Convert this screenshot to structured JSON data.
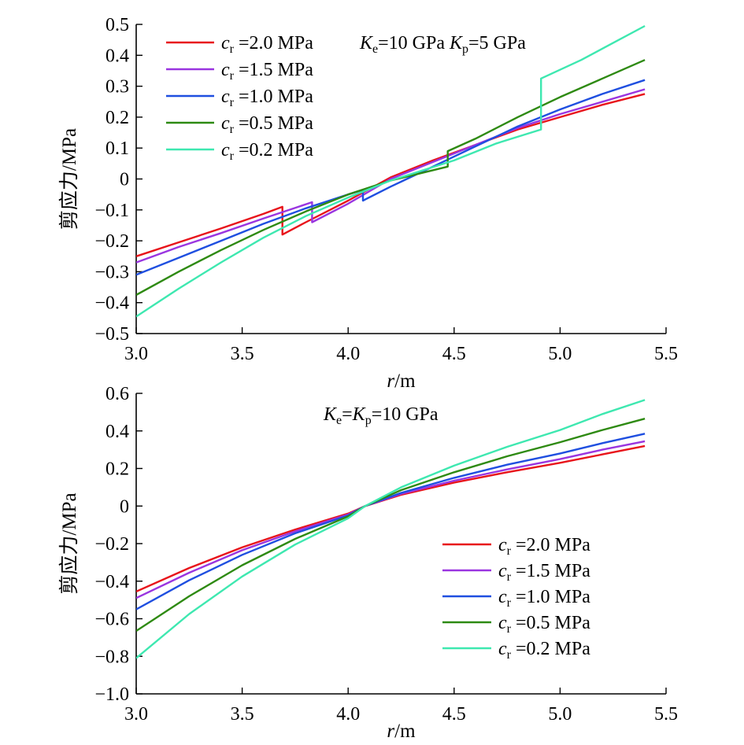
{
  "colors": {
    "c20": "#e8141b",
    "c15": "#9a35e0",
    "c10": "#1f4fe0",
    "c05": "#2e8a12",
    "c02": "#3ee8b0"
  },
  "chart_data": [
    {
      "type": "line",
      "ylabel": "剪应力/MPa",
      "xlabel_var": "r",
      "xlabel_unit": "/m",
      "xlim": [
        3.0,
        5.5
      ],
      "ylim": [
        -0.5,
        0.5
      ],
      "xticks": [
        "3.0",
        "3.5",
        "4.0",
        "4.5",
        "5.0",
        "5.5"
      ],
      "yticks": [
        "0.5",
        "0.4",
        "0.3",
        "0.2",
        "0.1",
        "0",
        "−0.1",
        "−0.2",
        "−0.3",
        "−0.4",
        "−0.5"
      ],
      "annotation": {
        "k1": "K",
        "k1_sub": "e",
        "k1_val": "=10 GPa ",
        "k2": "K",
        "k2_sub": "p",
        "k2_val": "=5 GPa"
      },
      "legend_position": "top-left",
      "series": [
        {
          "name_var": "c",
          "name_sub": "r",
          "name_val": " =2.0 MPa",
          "color_key": "c20",
          "points": [
            [
              3.0,
              -0.25
            ],
            [
              3.2,
              -0.205
            ],
            [
              3.4,
              -0.16
            ],
            [
              3.6,
              -0.113
            ],
            [
              3.69,
              -0.09
            ],
            [
              3.69,
              -0.18
            ],
            [
              3.8,
              -0.14
            ],
            [
              4.0,
              -0.07
            ],
            [
              4.2,
              0.005
            ],
            [
              4.4,
              0.06
            ],
            [
              4.6,
              0.11
            ],
            [
              4.8,
              0.16
            ],
            [
              5.0,
              0.2
            ],
            [
              5.2,
              0.24
            ],
            [
              5.4,
              0.275
            ]
          ]
        },
        {
          "name_var": "c",
          "name_sub": "r",
          "name_val": " =1.5 MPa",
          "color_key": "c15",
          "points": [
            [
              3.0,
              -0.27
            ],
            [
              3.2,
              -0.22
            ],
            [
              3.4,
              -0.175
            ],
            [
              3.6,
              -0.128
            ],
            [
              3.83,
              -0.075
            ],
            [
              3.83,
              -0.14
            ],
            [
              4.0,
              -0.08
            ],
            [
              4.2,
              0.0
            ],
            [
              4.4,
              0.055
            ],
            [
              4.6,
              0.11
            ],
            [
              4.8,
              0.165
            ],
            [
              5.0,
              0.21
            ],
            [
              5.2,
              0.25
            ],
            [
              5.4,
              0.29
            ]
          ]
        },
        {
          "name_var": "c",
          "name_sub": "r",
          "name_val": " =1.0 MPa",
          "color_key": "c10",
          "points": [
            [
              3.0,
              -0.31
            ],
            [
              3.2,
              -0.255
            ],
            [
              3.4,
              -0.2
            ],
            [
              3.6,
              -0.145
            ],
            [
              3.8,
              -0.095
            ],
            [
              4.0,
              -0.05
            ],
            [
              4.07,
              -0.035
            ],
            [
              4.07,
              -0.07
            ],
            [
              4.2,
              -0.025
            ],
            [
              4.4,
              0.04
            ],
            [
              4.6,
              0.105
            ],
            [
              4.8,
              0.17
            ],
            [
              5.0,
              0.225
            ],
            [
              5.2,
              0.275
            ],
            [
              5.4,
              0.32
            ]
          ]
        },
        {
          "name_var": "c",
          "name_sub": "r",
          "name_val": " =0.5 MPa",
          "color_key": "c05",
          "points": [
            [
              3.0,
              -0.375
            ],
            [
              3.2,
              -0.3
            ],
            [
              3.4,
              -0.23
            ],
            [
              3.6,
              -0.165
            ],
            [
              3.8,
              -0.105
            ],
            [
              4.0,
              -0.05
            ],
            [
              4.2,
              -0.005
            ],
            [
              4.47,
              0.04
            ],
            [
              4.47,
              0.09
            ],
            [
              4.6,
              0.13
            ],
            [
              4.8,
              0.2
            ],
            [
              5.0,
              0.265
            ],
            [
              5.2,
              0.325
            ],
            [
              5.4,
              0.385
            ]
          ]
        },
        {
          "name_var": "c",
          "name_sub": "r",
          "name_val": " =0.2 MPa",
          "color_key": "c02",
          "points": [
            [
              3.0,
              -0.445
            ],
            [
              3.2,
              -0.355
            ],
            [
              3.4,
              -0.27
            ],
            [
              3.6,
              -0.19
            ],
            [
              3.8,
              -0.12
            ],
            [
              4.0,
              -0.06
            ],
            [
              4.2,
              -0.005
            ],
            [
              4.5,
              0.06
            ],
            [
              4.7,
              0.115
            ],
            [
              4.91,
              0.16
            ],
            [
              4.91,
              0.325
            ],
            [
              5.1,
              0.385
            ],
            [
              5.25,
              0.44
            ],
            [
              5.4,
              0.495
            ]
          ]
        }
      ]
    },
    {
      "type": "line",
      "ylabel": "剪应力/MPa",
      "xlabel_var": "r",
      "xlabel_unit": "/m",
      "xlim": [
        3.0,
        5.5
      ],
      "ylim": [
        -1.0,
        0.6
      ],
      "xticks": [
        "3.0",
        "3.5",
        "4.0",
        "4.5",
        "5.0",
        "5.5"
      ],
      "yticks": [
        "0.6",
        "0.4",
        "0.2",
        "0",
        "−0.2",
        "−0.4",
        "−0.6",
        "−0.8",
        "−1.0"
      ],
      "annotation": {
        "k1": "K",
        "k1_sub": "e",
        "k1_val": "=",
        "k2": "K",
        "k2_sub": "p",
        "k2_val": "=10 GPa"
      },
      "legend_position": "bottom-right",
      "series": [
        {
          "name_var": "c",
          "name_sub": "r",
          "name_val": " =2.0 MPa",
          "color_key": "c20",
          "points": [
            [
              3.0,
              -0.455
            ],
            [
              3.25,
              -0.33
            ],
            [
              3.5,
              -0.22
            ],
            [
              3.75,
              -0.125
            ],
            [
              4.0,
              -0.04
            ],
            [
              4.08,
              0.0
            ],
            [
              4.25,
              0.06
            ],
            [
              4.5,
              0.125
            ],
            [
              4.75,
              0.18
            ],
            [
              5.0,
              0.23
            ],
            [
              5.2,
              0.275
            ],
            [
              5.4,
              0.32
            ]
          ]
        },
        {
          "name_var": "c",
          "name_sub": "r",
          "name_val": " =1.5 MPa",
          "color_key": "c15",
          "points": [
            [
              3.0,
              -0.49
            ],
            [
              3.25,
              -0.355
            ],
            [
              3.5,
              -0.235
            ],
            [
              3.75,
              -0.135
            ],
            [
              4.0,
              -0.045
            ],
            [
              4.08,
              0.0
            ],
            [
              4.25,
              0.065
            ],
            [
              4.5,
              0.135
            ],
            [
              4.75,
              0.195
            ],
            [
              5.0,
              0.25
            ],
            [
              5.2,
              0.3
            ],
            [
              5.4,
              0.345
            ]
          ]
        },
        {
          "name_var": "c",
          "name_sub": "r",
          "name_val": " =1.0 MPa",
          "color_key": "c10",
          "points": [
            [
              3.0,
              -0.55
            ],
            [
              3.25,
              -0.395
            ],
            [
              3.5,
              -0.26
            ],
            [
              3.75,
              -0.145
            ],
            [
              4.0,
              -0.05
            ],
            [
              4.08,
              0.0
            ],
            [
              4.25,
              0.07
            ],
            [
              4.5,
              0.15
            ],
            [
              4.75,
              0.22
            ],
            [
              5.0,
              0.28
            ],
            [
              5.2,
              0.335
            ],
            [
              5.4,
              0.385
            ]
          ]
        },
        {
          "name_var": "c",
          "name_sub": "r",
          "name_val": " =0.5 MPa",
          "color_key": "c05",
          "points": [
            [
              3.0,
              -0.665
            ],
            [
              3.25,
              -0.48
            ],
            [
              3.5,
              -0.315
            ],
            [
              3.75,
              -0.175
            ],
            [
              4.0,
              -0.055
            ],
            [
              4.08,
              0.0
            ],
            [
              4.25,
              0.085
            ],
            [
              4.5,
              0.18
            ],
            [
              4.75,
              0.265
            ],
            [
              5.0,
              0.34
            ],
            [
              5.2,
              0.405
            ],
            [
              5.4,
              0.465
            ]
          ]
        },
        {
          "name_var": "c",
          "name_sub": "r",
          "name_val": " =0.2 MPa",
          "color_key": "c02",
          "points": [
            [
              3.0,
              -0.81
            ],
            [
              3.25,
              -0.575
            ],
            [
              3.5,
              -0.375
            ],
            [
              3.75,
              -0.205
            ],
            [
              4.0,
              -0.065
            ],
            [
              4.08,
              0.0
            ],
            [
              4.25,
              0.1
            ],
            [
              4.5,
              0.215
            ],
            [
              4.75,
              0.315
            ],
            [
              5.0,
              0.405
            ],
            [
              5.2,
              0.49
            ],
            [
              5.4,
              0.565
            ]
          ]
        }
      ]
    }
  ]
}
